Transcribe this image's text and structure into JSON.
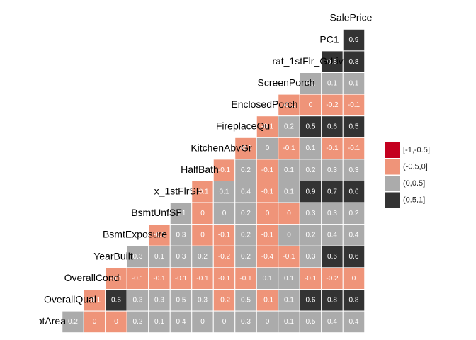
{
  "chart_data": {
    "type": "corrmatrix",
    "variables": [
      "SalePrice",
      "PC1",
      "rat_1stFlr_GrLiv",
      "ScreenPorch",
      "EnclosedPorch",
      "FireplaceQu",
      "KitchenAbvGr",
      "HalfBath",
      "x_1stFlrSF",
      "BsmtUnfSF",
      "BsmtExposure",
      "YearBuilt",
      "OverallCond",
      "OverallQual",
      "LotArea"
    ],
    "rows": [
      [],
      [
        0.9
      ],
      [
        0.8,
        0.8
      ],
      [
        0.1,
        0.1,
        0.1
      ],
      [
        -0.1,
        0,
        -0.2,
        -0.1
      ],
      [
        -0.1,
        0.2,
        0.5,
        0.6,
        0.5
      ],
      [
        -0.1,
        0,
        -0.1,
        0.1,
        -0.1,
        -0.1
      ],
      [
        -0.1,
        0.2,
        -0.1,
        0.1,
        0.2,
        0.3,
        0.3
      ],
      [
        -0.1,
        0.1,
        0.4,
        -0.1,
        0.1,
        0.9,
        0.7,
        0.6
      ],
      [
        0.1,
        0,
        0,
        0.2,
        0,
        0,
        0.3,
        0.3,
        0.2
      ],
      [
        -0.1,
        0.3,
        0,
        -0.1,
        0.2,
        -0.1,
        0,
        0.2,
        0.4,
        0.4
      ],
      [
        0.3,
        0.1,
        0.3,
        0.2,
        -0.2,
        0.2,
        -0.4,
        -0.1,
        0.3,
        0.6,
        0.6
      ],
      [
        -0.1,
        -0.1,
        -0.1,
        -0.1,
        -0.1,
        -0.1,
        -0.1,
        0.1,
        0.1,
        -0.1,
        -0.2,
        0
      ],
      [
        -0.1,
        0.6,
        0.3,
        0.3,
        0.5,
        0.3,
        -0.2,
        0.5,
        -0.1,
        0.1,
        0.6,
        0.8,
        0.8
      ],
      [
        0.2,
        0,
        0,
        0.2,
        0.1,
        0.4,
        0,
        0,
        0.3,
        0,
        0.1,
        0.5,
        0.4,
        0.4
      ]
    ],
    "colors": [
      [],
      [
        "#333333"
      ],
      [
        "#333333",
        "#333333"
      ],
      [
        "#ababab",
        "#ababab",
        "#ababab"
      ],
      [
        "#ef9479",
        "#ef9479",
        "#ef9479",
        "#ef9479"
      ],
      [
        "#ef9479",
        "#ababab",
        "#333333",
        "#333333",
        "#333333"
      ],
      [
        "#ef9479",
        "#ababab",
        "#ef9479",
        "#ababab",
        "#ef9479",
        "#ef9479"
      ],
      [
        "#ef9479",
        "#ababab",
        "#ef9479",
        "#ababab",
        "#ababab",
        "#ababab",
        "#ababab"
      ],
      [
        "#ef9479",
        "#ababab",
        "#ababab",
        "#ef9479",
        "#ababab",
        "#333333",
        "#333333",
        "#333333"
      ],
      [
        "#ababab",
        "#ef9479",
        "#ababab",
        "#ababab",
        "#ef9479",
        "#ef9479",
        "#ababab",
        "#ababab",
        "#ababab"
      ],
      [
        "#ef9479",
        "#ababab",
        "#ef9479",
        "#ef9479",
        "#ababab",
        "#ef9479",
        "#ababab",
        "#ababab",
        "#ababab",
        "#ababab"
      ],
      [
        "#ababab",
        "#ababab",
        "#ababab",
        "#ababab",
        "#ef9479",
        "#ababab",
        "#ef9479",
        "#ef9479",
        "#ababab",
        "#333333",
        "#333333"
      ],
      [
        "#ef9479",
        "#ef9479",
        "#ef9479",
        "#ef9479",
        "#ef9479",
        "#ef9479",
        "#ef9479",
        "#ababab",
        "#ababab",
        "#ef9479",
        "#ef9479",
        "#ef9479"
      ],
      [
        "#ef9479",
        "#333333",
        "#ababab",
        "#ababab",
        "#ababab",
        "#ababab",
        "#ef9479",
        "#ababab",
        "#ef9479",
        "#ababab",
        "#333333",
        "#333333",
        "#333333"
      ],
      [
        "#ababab",
        "#ef9479",
        "#ef9479",
        "#ababab",
        "#ababab",
        "#ababab",
        "#ababab",
        "#ababab",
        "#ababab",
        "#ababab",
        "#ababab",
        "#ababab",
        "#ababab",
        "#ababab"
      ]
    ],
    "legend": [
      {
        "label": "[-1,-0.5]",
        "color": "#c4001f"
      },
      {
        "label": "(-0.5,0]",
        "color": "#ef9479"
      },
      {
        "label": "(0,0.5]",
        "color": "#ababab"
      },
      {
        "label": "(0.5,1]",
        "color": "#333333"
      }
    ]
  }
}
